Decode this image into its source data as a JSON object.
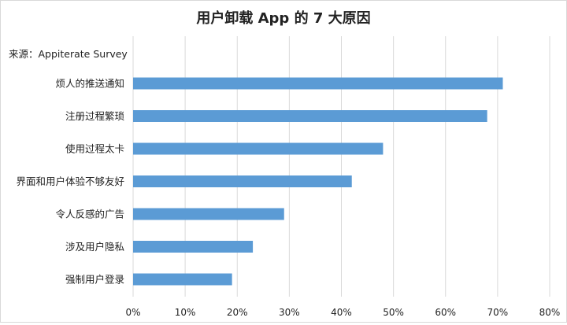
{
  "chart_data": {
    "type": "bar",
    "orientation": "horizontal",
    "title": "用户卸载 App 的 7 大原因",
    "source_label": "来源：Appiterate Survey",
    "categories": [
      "烦人的推送通知",
      "注册过程繁琐",
      "使用过程太卡",
      "界面和用户体验不够友好",
      "令人反感的广告",
      "涉及用户隐私",
      "强制用户登录"
    ],
    "values": [
      71,
      68,
      48,
      42,
      29,
      23,
      19
    ],
    "xlim": [
      0,
      80
    ],
    "x_ticks": [
      "0%",
      "10%",
      "20%",
      "30%",
      "40%",
      "50%",
      "60%",
      "70%",
      "80%"
    ],
    "xlabel": "",
    "ylabel": "",
    "grid": "vertical",
    "legend": "none",
    "bar_color": "#5b9bd5"
  }
}
